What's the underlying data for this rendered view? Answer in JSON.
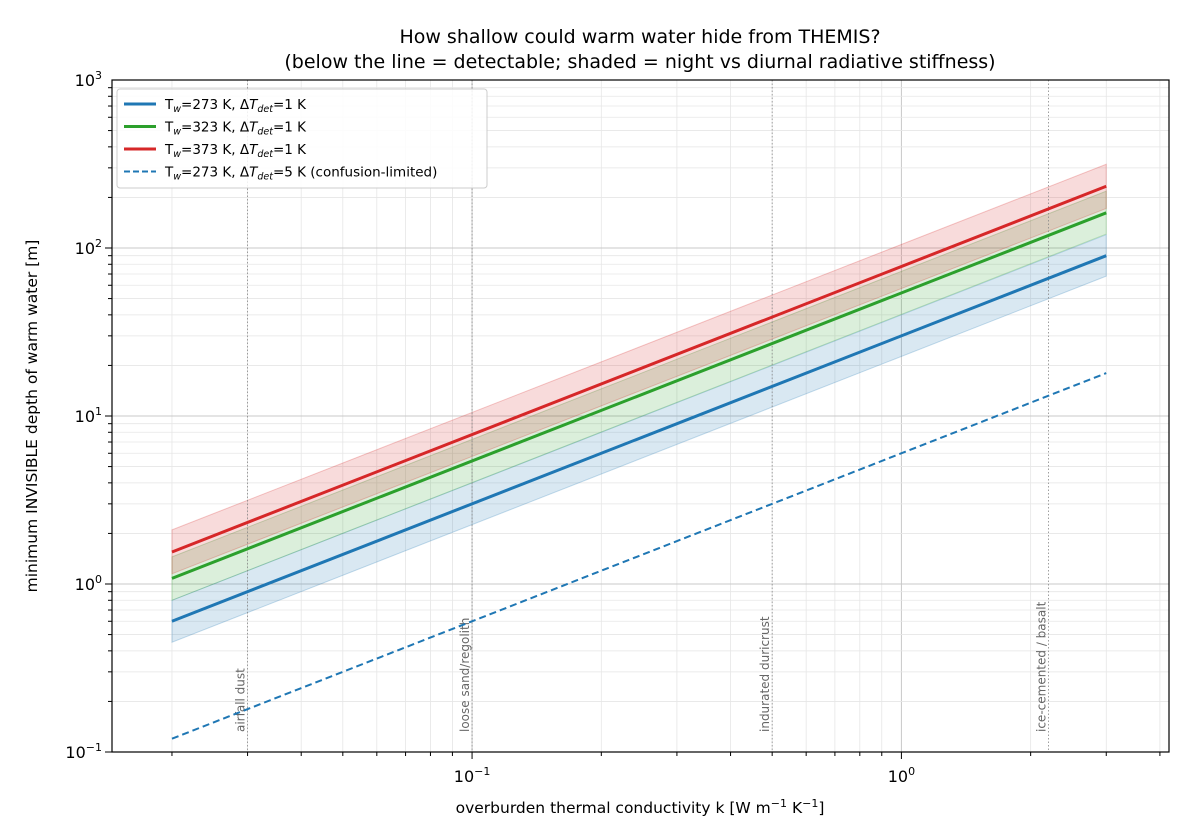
{
  "chart_data": {
    "type": "line",
    "title_line1": "How shallow could warm water hide from THEMIS?",
    "title_line2": "(below the line = detectable; shaded = night vs diurnal radiative stiffness)",
    "xlabel": "overburden thermal conductivity k  [W m",
    "xlabel_exp1": "−1",
    "xlabel_mid": " K",
    "xlabel_exp2": "−1",
    "xlabel_end": "]",
    "ylabel": "minimum INVISIBLE depth of warm water  [m]",
    "x_scale": "log",
    "y_scale": "log",
    "xlim": [
      0.0145,
      4.2
    ],
    "ylim": [
      0.1,
      1000
    ],
    "grid": true,
    "legend_position": "top-left",
    "x_ticks": [
      {
        "value": 0.1,
        "base": "10",
        "exp": "−1"
      },
      {
        "value": 1,
        "base": "10",
        "exp": "0"
      }
    ],
    "y_ticks": [
      {
        "value": 0.1,
        "base": "10",
        "exp": "−1"
      },
      {
        "value": 1,
        "base": "10",
        "exp": "0"
      },
      {
        "value": 10,
        "base": "10",
        "exp": "1"
      },
      {
        "value": 100,
        "base": "10",
        "exp": "2"
      },
      {
        "value": 1000,
        "base": "10",
        "exp": "3"
      }
    ],
    "series": [
      {
        "name": "T",
        "name_sub": "w",
        "name_rest": "=273 K, Δ",
        "name_it": "T",
        "name_it_sub": "det",
        "name_end": "=1 K",
        "color": "#1f77b4",
        "style": "solid",
        "x": [
          0.02,
          3.0
        ],
        "y": [
          0.6,
          90
        ],
        "band_low": [
          0.45,
          68
        ],
        "band_high": [
          0.8,
          120
        ]
      },
      {
        "name": "T",
        "name_sub": "w",
        "name_rest": "=323 K, Δ",
        "name_it": "T",
        "name_it_sub": "det",
        "name_end": "=1 K",
        "color": "#2ca02c",
        "style": "solid",
        "x": [
          0.02,
          3.0
        ],
        "y": [
          1.08,
          162
        ],
        "band_low": [
          0.8,
          121
        ],
        "band_high": [
          1.45,
          218
        ]
      },
      {
        "name": "T",
        "name_sub": "w",
        "name_rest": "=373 K, Δ",
        "name_it": "T",
        "name_it_sub": "det",
        "name_end": "=1 K",
        "color": "#d62728",
        "style": "solid",
        "x": [
          0.02,
          3.0
        ],
        "y": [
          1.55,
          233
        ],
        "band_low": [
          1.15,
          172
        ],
        "band_high": [
          2.1,
          315
        ]
      },
      {
        "name": "T",
        "name_sub": "w",
        "name_rest": "=273 K, Δ",
        "name_it": "T",
        "name_it_sub": "det",
        "name_end": "=5 K (confusion-limited)",
        "color": "#1f77b4",
        "style": "dashed",
        "x": [
          0.02,
          3.0
        ],
        "y": [
          0.12,
          18
        ]
      }
    ],
    "annotations": [
      {
        "x": 0.03,
        "label": "airfall dust"
      },
      {
        "x": 0.1,
        "label": "loose sand/regolith"
      },
      {
        "x": 0.5,
        "label": "indurated duricrust"
      },
      {
        "x": 2.2,
        "label": "ice-cemented / basalt"
      }
    ]
  }
}
